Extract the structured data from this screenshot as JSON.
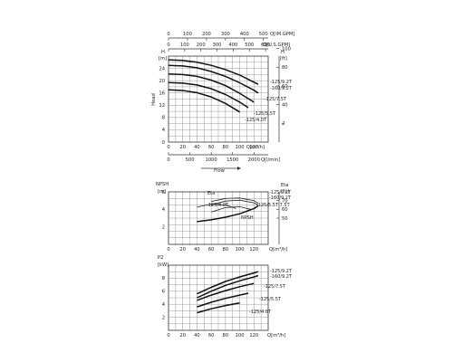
{
  "chart_data": [
    {
      "type": "line",
      "title": "",
      "xlabel": "Q[m³/h]",
      "ylabel": "Head",
      "x_ticks": [
        "0",
        "20",
        "40",
        "60",
        "80",
        "100",
        "120"
      ],
      "xlim": [
        0,
        140
      ],
      "ylim": [
        0,
        28
      ],
      "y_ticks_left": [
        "0",
        "4",
        "8",
        "12",
        "16",
        "20",
        "24"
      ],
      "y_left_unit": "H",
      "y_left_unit2": "[m]",
      "y_ticks_right": [
        "40",
        "60",
        "80",
        "100"
      ],
      "y_right_extra": "2̶",
      "y_right_unit": "H",
      "y_right_unit2": "[ft]",
      "top_axis_1": {
        "label": "Q[IM.GPM]",
        "ticks": [
          "0",
          "100",
          "200",
          "300",
          "400",
          "500"
        ]
      },
      "top_axis_2": {
        "label": "Q[U.S.GPM]",
        "ticks": [
          "0",
          "100",
          "200",
          "300",
          "400",
          "500",
          "600"
        ]
      },
      "bottom_axis_2": {
        "label": "Q[l/min]",
        "ticks": [
          "0",
          "500",
          "1000",
          "1500",
          "2000"
        ]
      },
      "flow_arrow_label": "Flow",
      "series": [
        {
          "name": "-125/9.2T",
          "x": [
            0,
            20,
            40,
            60,
            80,
            100,
            120,
            126
          ],
          "y": [
            26.8,
            26.6,
            26.0,
            25.0,
            23.6,
            21.8,
            19.5,
            18.8
          ]
        },
        {
          "name": "-160/9.2T",
          "x": [
            0,
            20,
            40,
            60,
            80,
            100,
            120,
            126
          ],
          "y": [
            25.0,
            24.8,
            24.2,
            23.0,
            21.4,
            19.3,
            16.9,
            16.0
          ]
        },
        {
          "name": "-125/7.5T",
          "x": [
            0,
            20,
            40,
            60,
            80,
            100,
            120
          ],
          "y": [
            22.2,
            22.0,
            21.4,
            20.2,
            18.4,
            15.9,
            13.0
          ]
        },
        {
          "name": "-125/5.5T",
          "x": [
            0,
            20,
            40,
            60,
            80,
            100,
            112
          ],
          "y": [
            19.4,
            19.2,
            18.6,
            17.4,
            15.5,
            13.0,
            11.2
          ]
        },
        {
          "name": "-125/4.0T",
          "x": [
            0,
            20,
            40,
            60,
            80,
            100
          ],
          "y": [
            17.0,
            16.8,
            16.1,
            14.7,
            12.6,
            9.8
          ]
        }
      ]
    },
    {
      "type": "line",
      "title": "",
      "xlabel": "Q[m³/h]",
      "ylabel": "NPSH",
      "y_left_unit2": "[m]",
      "x_ticks": [
        "0",
        "20",
        "40",
        "60",
        "80",
        "100",
        "120"
      ],
      "xlim": [
        0,
        140
      ],
      "ylim": [
        0,
        6
      ],
      "y_ticks_left": [
        "2",
        "4",
        "6"
      ],
      "y_ticks_right": [
        "50",
        "60",
        "70"
      ],
      "y_right_unit": "Eta",
      "y_right_unit2": "[%]",
      "eta_label": "Eta",
      "npsh_label": "NPSH",
      "series": [
        {
          "name": "-125/9.2T",
          "x": [
            60,
            80,
            100,
            120,
            126
          ],
          "y": [
            4.9,
            5.25,
            5.3,
            5.0,
            4.7
          ]
        },
        {
          "name": "-160/9.2T",
          "x": [
            60,
            80,
            100,
            120,
            126
          ],
          "y": [
            4.5,
            4.95,
            5.05,
            4.75,
            4.5
          ]
        },
        {
          "name": "-125/5.5T 7.5T",
          "x": [
            60,
            80,
            100,
            115
          ],
          "y": [
            3.7,
            4.2,
            4.3,
            4.0
          ]
        },
        {
          "name": "-125/4.0T",
          "x": [
            40,
            60,
            80,
            95
          ],
          "y": [
            4.25,
            4.6,
            4.5,
            4.1
          ]
        },
        {
          "name": "NPSH",
          "x": [
            40,
            60,
            80,
            100,
            120,
            126
          ],
          "y": [
            2.6,
            2.8,
            3.1,
            3.5,
            4.1,
            4.4
          ]
        }
      ]
    },
    {
      "type": "line",
      "title": "",
      "xlabel": "Q[m³/h]",
      "ylabel": "P2",
      "y_left_unit2": "[kW]",
      "x_ticks": [
        "0",
        "20",
        "40",
        "60",
        "80",
        "100",
        "120"
      ],
      "xlim": [
        0,
        140
      ],
      "ylim": [
        0,
        10
      ],
      "y_ticks_left": [
        "2",
        "4",
        "6",
        "8"
      ],
      "series": [
        {
          "name": "-125/9.2T",
          "x": [
            40,
            60,
            80,
            100,
            120,
            126
          ],
          "y": [
            5.6,
            6.6,
            7.5,
            8.2,
            8.8,
            9.0
          ]
        },
        {
          "name": "-160/9.2T",
          "x": [
            40,
            60,
            80,
            100,
            120,
            126
          ],
          "y": [
            5.0,
            6.0,
            6.9,
            7.6,
            8.2,
            8.4
          ]
        },
        {
          "name": "-125/7.5T",
          "x": [
            40,
            60,
            80,
            100,
            120
          ],
          "y": [
            4.6,
            5.4,
            6.1,
            6.7,
            7.2
          ]
        },
        {
          "name": "-125/5.5T",
          "x": [
            40,
            60,
            80,
            100,
            112
          ],
          "y": [
            3.6,
            4.3,
            4.9,
            5.4,
            5.7
          ]
        },
        {
          "name": "-125/4.0T",
          "x": [
            40,
            60,
            80,
            100
          ],
          "y": [
            2.7,
            3.3,
            3.8,
            4.2
          ]
        }
      ]
    }
  ]
}
